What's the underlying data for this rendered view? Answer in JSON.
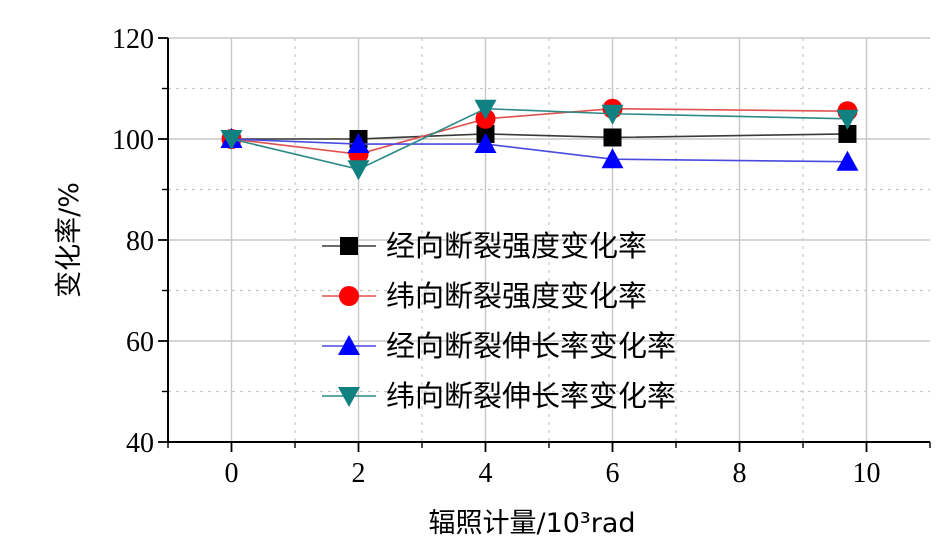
{
  "chart_data": {
    "type": "line",
    "xlabel": "辐照计量/10³rad",
    "ylabel": "变化率/%",
    "xlim": [
      -1,
      11
    ],
    "ylim": [
      40,
      120
    ],
    "xticks": [
      0,
      2,
      4,
      6,
      8,
      10
    ],
    "yticks": [
      40,
      60,
      80,
      100,
      120
    ],
    "x_tick_labels": [
      "0",
      "2",
      "4",
      "6",
      "8",
      "10"
    ],
    "y_tick_labels": [
      "40",
      "60",
      "80",
      "100",
      "120"
    ],
    "grid": true,
    "legend_position": "center-left",
    "series": [
      {
        "name": "经向断裂强度变化率",
        "marker": "square",
        "color": "#000000",
        "line_color": "#3a3a3a",
        "x": [
          0,
          2,
          4,
          6,
          9.7
        ],
        "y": [
          100,
          100,
          101,
          100.3,
          101
        ]
      },
      {
        "name": "纬向断裂强度变化率",
        "marker": "circle",
        "color": "#ff0000",
        "line_color": "#e0524f",
        "x": [
          0,
          2,
          4,
          6,
          9.7
        ],
        "y": [
          100,
          97,
          104,
          106,
          105.5
        ]
      },
      {
        "name": "经向断裂伸长率变化率",
        "marker": "triangle-up",
        "color": "#0000ff",
        "line_color": "#4a4ae0",
        "x": [
          0,
          2,
          4,
          6,
          9.7
        ],
        "y": [
          100,
          99,
          99,
          96,
          95.5
        ]
      },
      {
        "name": "纬向断裂伸长率变化率",
        "marker": "triangle-down",
        "color": "#108080",
        "line_color": "#2d8a86",
        "x": [
          0,
          2,
          4,
          6,
          9.7
        ],
        "y": [
          100,
          94,
          106,
          105,
          104
        ]
      }
    ]
  }
}
